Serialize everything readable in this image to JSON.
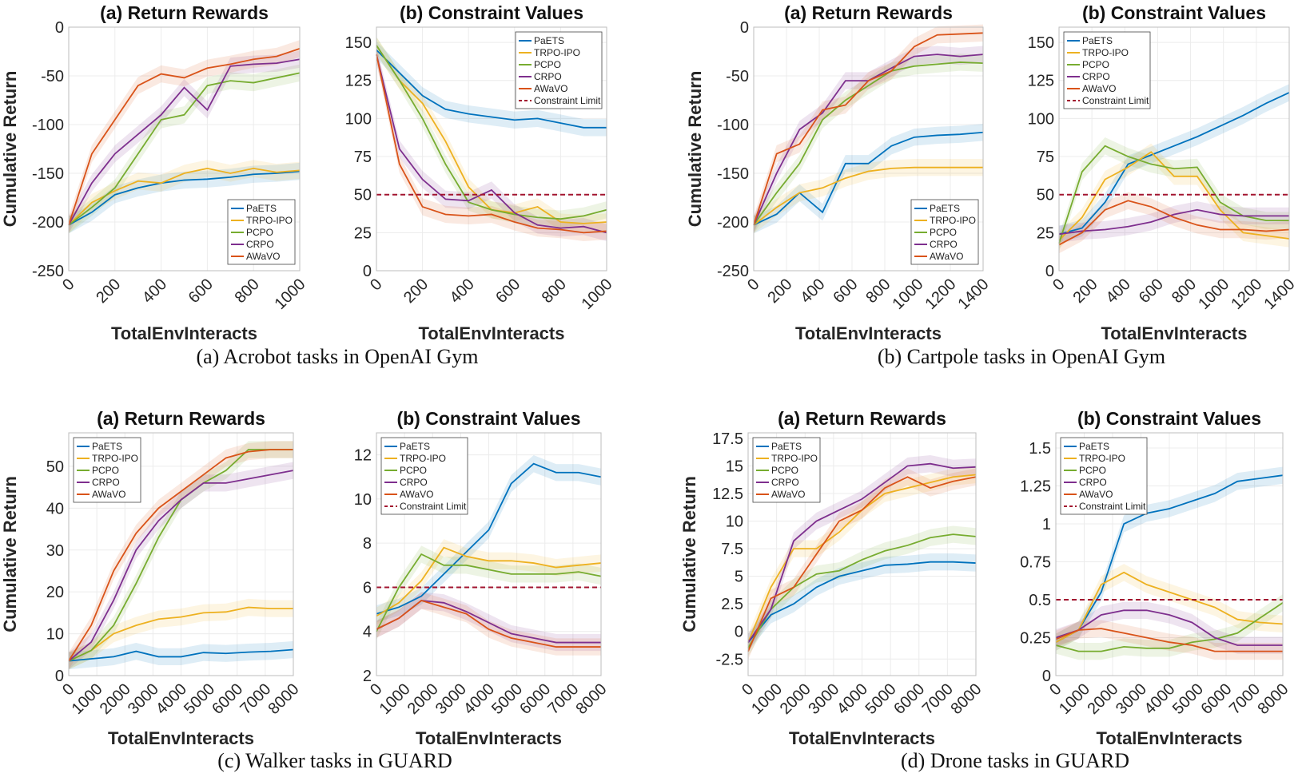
{
  "colors": {
    "PaETS": "#0072BD",
    "TRPO-IPO": "#EDB120",
    "PCPO": "#77AC30",
    "CRPO": "#7E2F8E",
    "AWaVO": "#D95319",
    "Constraint Limit": "#A2142F"
  },
  "captions": [
    "(a)  Acrobot tasks in OpenAI Gym",
    "(b)  Cartpole tasks in OpenAI Gym",
    "(c)  Walker tasks in GUARD",
    "(d)  Drone tasks in GUARD"
  ],
  "chart_data": [
    {
      "type": "line",
      "group": 0,
      "title": "(a) Return Rewards",
      "xlabel": "TotalEnvInteracts",
      "ylabel": "Cumulative Return",
      "legend": "bottom-right",
      "grid": true,
      "x": [
        0,
        100,
        200,
        300,
        400,
        500,
        600,
        700,
        800,
        900,
        1000
      ],
      "xlim": [
        0,
        1000
      ],
      "xticks": [
        0,
        200,
        400,
        600,
        800,
        1000
      ],
      "ylim": [
        -250,
        0
      ],
      "yticks": [
        -250,
        -200,
        -150,
        -100,
        -50,
        0
      ],
      "series": [
        {
          "name": "PaETS",
          "values": [
            -203,
            -190,
            -172,
            -165,
            -160,
            -157,
            -156,
            -154,
            -151,
            -150,
            -148
          ]
        },
        {
          "name": "TRPO-IPO",
          "values": [
            -203,
            -180,
            -168,
            -158,
            -160,
            -150,
            -145,
            -150,
            -145,
            -149,
            -147
          ]
        },
        {
          "name": "PCPO",
          "values": [
            -203,
            -185,
            -165,
            -130,
            -95,
            -90,
            -60,
            -55,
            -57,
            -52,
            -47
          ]
        },
        {
          "name": "CRPO",
          "values": [
            -203,
            -160,
            -130,
            -110,
            -90,
            -62,
            -85,
            -40,
            -38,
            -37,
            -33
          ]
        },
        {
          "name": "AWaVO",
          "values": [
            -203,
            -130,
            -95,
            -60,
            -48,
            -52,
            -42,
            -38,
            -33,
            -30,
            -22
          ]
        }
      ]
    },
    {
      "type": "line",
      "group": 0,
      "title": "(b) Constraint Values",
      "xlabel": "TotalEnvInteracts",
      "ylabel": "",
      "legend": "top-right",
      "grid": true,
      "x": [
        0,
        100,
        200,
        300,
        400,
        500,
        600,
        700,
        800,
        900,
        1000
      ],
      "xlim": [
        0,
        1000
      ],
      "xticks": [
        0,
        200,
        400,
        600,
        800,
        1000
      ],
      "ylim": [
        0,
        160
      ],
      "yticks": [
        0,
        25,
        50,
        75,
        100,
        125,
        150
      ],
      "limit": {
        "name": "Constraint Limit",
        "value": 50
      },
      "series": [
        {
          "name": "PaETS",
          "values": [
            145,
            130,
            115,
            106,
            103,
            101,
            99,
            100,
            97,
            94,
            94
          ]
        },
        {
          "name": "TRPO-IPO",
          "values": [
            148,
            125,
            110,
            85,
            55,
            40,
            38,
            42,
            32,
            31,
            32
          ]
        },
        {
          "name": "PCPO",
          "values": [
            148,
            125,
            100,
            70,
            45,
            40,
            37,
            35,
            34,
            36,
            40
          ]
        },
        {
          "name": "CRPO",
          "values": [
            142,
            80,
            60,
            47,
            46,
            53,
            38,
            30,
            28,
            29,
            25
          ]
        },
        {
          "name": "AWaVO",
          "values": [
            142,
            70,
            42,
            37,
            36,
            37,
            32,
            28,
            27,
            25,
            26
          ]
        }
      ]
    },
    {
      "type": "line",
      "group": 1,
      "title": "(a) Return Rewards",
      "xlabel": "TotalEnvInteracts",
      "ylabel": "Cumulative Return",
      "legend": "bottom-right",
      "grid": true,
      "x": [
        0,
        140,
        280,
        420,
        560,
        700,
        840,
        980,
        1120,
        1260,
        1400
      ],
      "xlim": [
        0,
        1400
      ],
      "xticks": [
        0,
        200,
        400,
        600,
        800,
        1000,
        1200,
        1400
      ],
      "ylim": [
        -250,
        0
      ],
      "yticks": [
        -250,
        -200,
        -150,
        -100,
        -50,
        0
      ],
      "series": [
        {
          "name": "PaETS",
          "values": [
            -203,
            -192,
            -170,
            -190,
            -140,
            -140,
            -122,
            -113,
            -111,
            -110,
            -108
          ]
        },
        {
          "name": "TRPO-IPO",
          "values": [
            -203,
            -185,
            -170,
            -165,
            -155,
            -148,
            -145,
            -144,
            -144,
            -144,
            -144
          ]
        },
        {
          "name": "PCPO",
          "values": [
            -203,
            -170,
            -140,
            -95,
            -75,
            -60,
            -45,
            -40,
            -38,
            -36,
            -37
          ]
        },
        {
          "name": "CRPO",
          "values": [
            -203,
            -150,
            -105,
            -88,
            -55,
            -55,
            -42,
            -30,
            -28,
            -30,
            -28
          ]
        },
        {
          "name": "AWaVO",
          "values": [
            -203,
            -130,
            -120,
            -85,
            -80,
            -55,
            -45,
            -20,
            -8,
            -7,
            -6
          ]
        }
      ]
    },
    {
      "type": "line",
      "group": 1,
      "title": "(b) Constraint Values",
      "xlabel": "TotalEnvInteracts",
      "ylabel": "",
      "legend": "top-left",
      "grid": true,
      "x": [
        0,
        140,
        280,
        420,
        560,
        700,
        840,
        980,
        1120,
        1260,
        1400
      ],
      "xlim": [
        0,
        1400
      ],
      "xticks": [
        0,
        200,
        400,
        600,
        800,
        1000,
        1200,
        1400
      ],
      "ylim": [
        0,
        160
      ],
      "yticks": [
        0,
        25,
        50,
        75,
        100,
        125,
        150
      ],
      "limit": {
        "name": "Constraint Limit",
        "value": 50
      },
      "series": [
        {
          "name": "PaETS",
          "values": [
            24,
            28,
            45,
            70,
            76,
            82,
            88,
            95,
            102,
            110,
            117
          ]
        },
        {
          "name": "TRPO-IPO",
          "values": [
            20,
            35,
            60,
            68,
            78,
            62,
            62,
            40,
            25,
            23,
            21
          ]
        },
        {
          "name": "PCPO",
          "values": [
            18,
            65,
            82,
            75,
            70,
            67,
            68,
            45,
            36,
            33,
            33
          ]
        },
        {
          "name": "CRPO",
          "values": [
            24,
            26,
            27,
            29,
            32,
            37,
            40,
            37,
            36,
            36,
            36
          ]
        },
        {
          "name": "AWaVO",
          "values": [
            17,
            25,
            40,
            46,
            42,
            35,
            30,
            27,
            27,
            26,
            27
          ]
        }
      ]
    },
    {
      "type": "line",
      "group": 2,
      "title": "(a) Return Rewards",
      "xlabel": "TotalEnvInteracts",
      "ylabel": "Cumulative Return",
      "legend": "top-left",
      "grid": true,
      "x": [
        0,
        800,
        1600,
        2400,
        3200,
        4000,
        4800,
        5600,
        6400,
        7200,
        8000
      ],
      "xlim": [
        0,
        8000
      ],
      "xticks": [
        0,
        1000,
        2000,
        3000,
        4000,
        5000,
        6000,
        7000,
        8000
      ],
      "ylim": [
        0,
        58
      ],
      "yticks": [
        0,
        10,
        20,
        30,
        40,
        50
      ],
      "series": [
        {
          "name": "PaETS",
          "values": [
            3.5,
            4,
            4.5,
            5.8,
            4.5,
            4.5,
            5.5,
            5.3,
            5.6,
            5.8,
            6.2
          ]
        },
        {
          "name": "TRPO-IPO",
          "values": [
            3.5,
            6,
            10,
            12,
            13.5,
            14,
            15,
            15.2,
            16.3,
            16,
            16
          ]
        },
        {
          "name": "PCPO",
          "values": [
            3.5,
            6,
            12,
            22,
            33,
            42,
            46,
            49,
            54,
            54,
            54
          ]
        },
        {
          "name": "CRPO",
          "values": [
            3.5,
            8,
            18,
            30,
            37,
            42,
            46,
            46,
            47,
            48,
            49
          ]
        },
        {
          "name": "AWaVO",
          "values": [
            3.5,
            12,
            25,
            34,
            40,
            44,
            48,
            52,
            53.5,
            54,
            54
          ]
        }
      ]
    },
    {
      "type": "line",
      "group": 2,
      "title": "(b) Constraint Values",
      "xlabel": "TotalEnvInteracts",
      "ylabel": "",
      "legend": "top-left",
      "grid": true,
      "x": [
        0,
        800,
        1600,
        2400,
        3200,
        4000,
        4800,
        5600,
        6400,
        7200,
        8000
      ],
      "xlim": [
        0,
        8000
      ],
      "xticks": [
        0,
        1000,
        2000,
        3000,
        4000,
        5000,
        6000,
        7000,
        8000
      ],
      "ylim": [
        2,
        13
      ],
      "yticks": [
        2,
        4,
        6,
        8,
        10,
        12
      ],
      "limit": {
        "name": "Constraint Limit",
        "value": 6
      },
      "series": [
        {
          "name": "PaETS",
          "values": [
            4.8,
            5.1,
            5.6,
            6.6,
            7.6,
            8.6,
            10.7,
            11.6,
            11.2,
            11.2,
            11
          ]
        },
        {
          "name": "TRPO-IPO",
          "values": [
            4.7,
            5.3,
            6.3,
            7.8,
            7.4,
            7.2,
            7.2,
            7.1,
            6.9,
            7.0,
            7.1
          ]
        },
        {
          "name": "PCPO",
          "values": [
            4,
            6,
            7.5,
            7.0,
            7.0,
            6.8,
            6.6,
            6.6,
            6.6,
            6.7,
            6.5
          ]
        },
        {
          "name": "CRPO",
          "values": [
            4.1,
            4.6,
            5.4,
            5.3,
            4.9,
            4.4,
            3.9,
            3.7,
            3.5,
            3.5,
            3.5
          ]
        },
        {
          "name": "AWaVO",
          "values": [
            4.1,
            4.6,
            5.4,
            5.1,
            4.8,
            4.1,
            3.7,
            3.5,
            3.3,
            3.3,
            3.3
          ]
        }
      ]
    },
    {
      "type": "line",
      "group": 3,
      "title": "(a) Return Rewards",
      "xlabel": "TotalEnvInteracts",
      "ylabel": "Cumulative Return",
      "legend": "top-left",
      "grid": true,
      "x": [
        0,
        800,
        1600,
        2400,
        3200,
        4000,
        4800,
        5600,
        6400,
        7200,
        8000
      ],
      "xlim": [
        0,
        8000
      ],
      "xticks": [
        0,
        1000,
        2000,
        3000,
        4000,
        5000,
        6000,
        7000,
        8000
      ],
      "ylim": [
        -4,
        18
      ],
      "yticks": [
        -2.5,
        0,
        2.5,
        5,
        7.5,
        10,
        12.5,
        15,
        17.5
      ],
      "series": [
        {
          "name": "PaETS",
          "values": [
            -1,
            1.5,
            2.5,
            4,
            5,
            5.5,
            6,
            6.1,
            6.3,
            6.3,
            6.2
          ]
        },
        {
          "name": "TRPO-IPO",
          "values": [
            -1,
            4,
            7.5,
            7.5,
            9,
            11,
            12.5,
            13,
            13.5,
            14,
            14.2
          ]
        },
        {
          "name": "PCPO",
          "values": [
            -1.5,
            2,
            4,
            5.2,
            5.5,
            6.5,
            7.3,
            7.8,
            8.5,
            8.8,
            8.6
          ]
        },
        {
          "name": "CRPO",
          "values": [
            -1,
            2,
            8.2,
            10,
            11,
            12,
            13.5,
            15,
            15.2,
            14.8,
            14.9
          ]
        },
        {
          "name": "AWaVO",
          "values": [
            -1.8,
            3,
            4,
            7,
            10,
            11,
            13,
            14,
            13,
            13.6,
            14
          ]
        }
      ]
    },
    {
      "type": "line",
      "group": 3,
      "title": "(b) Constraint Values",
      "xlabel": "TotalEnvInteracts",
      "ylabel": "",
      "legend": "top-left",
      "grid": true,
      "x": [
        0,
        800,
        1600,
        2400,
        3200,
        4000,
        4800,
        5600,
        6400,
        7200,
        8000
      ],
      "xlim": [
        0,
        8000
      ],
      "xticks": [
        0,
        1000,
        2000,
        3000,
        4000,
        5000,
        6000,
        7000,
        8000
      ],
      "ylim": [
        0,
        1.6
      ],
      "yticks": [
        0,
        0.25,
        0.5,
        0.75,
        1,
        1.25,
        1.5
      ],
      "limit": {
        "name": "Constraint Limit",
        "value": 0.5
      },
      "series": [
        {
          "name": "PaETS",
          "values": [
            0.22,
            0.3,
            0.55,
            1.0,
            1.07,
            1.1,
            1.15,
            1.2,
            1.28,
            1.3,
            1.32
          ]
        },
        {
          "name": "TRPO-IPO",
          "values": [
            0.22,
            0.3,
            0.6,
            0.68,
            0.6,
            0.55,
            0.5,
            0.45,
            0.37,
            0.35,
            0.34
          ]
        },
        {
          "name": "PCPO",
          "values": [
            0.2,
            0.16,
            0.16,
            0.19,
            0.18,
            0.18,
            0.22,
            0.24,
            0.28,
            0.38,
            0.48
          ]
        },
        {
          "name": "CRPO",
          "values": [
            0.25,
            0.3,
            0.4,
            0.43,
            0.43,
            0.4,
            0.35,
            0.25,
            0.2,
            0.2,
            0.2
          ]
        },
        {
          "name": "AWaVO",
          "values": [
            0.24,
            0.3,
            0.31,
            0.28,
            0.25,
            0.22,
            0.2,
            0.16,
            0.16,
            0.16,
            0.16
          ]
        }
      ]
    }
  ]
}
